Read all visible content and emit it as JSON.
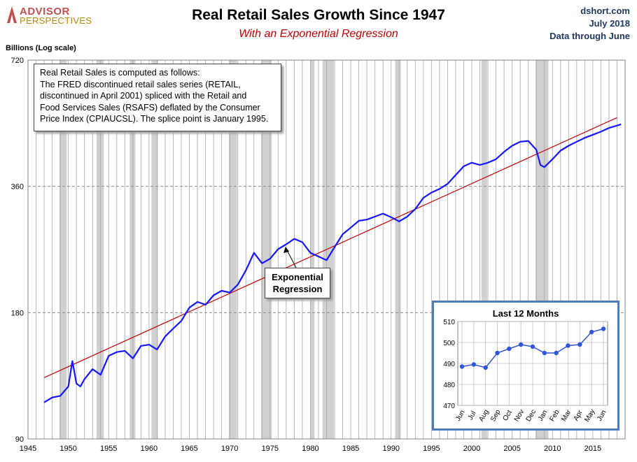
{
  "brand": {
    "line1": "ADVISOR",
    "line2": "PERSPECTIVES"
  },
  "header": {
    "title": "Real Retail Sales Growth Since 1947",
    "subtitle": "With an Exponential Regression",
    "source_lines": [
      "dshort.com",
      "July 2018",
      "Data through June"
    ]
  },
  "y_axis_label": "Billions (Log scale)",
  "note_lines": [
    "Real Retail Sales is computed as follows:",
    "The FRED discontinued retail sales series (RETAIL,",
    "discontinued in April 2001) spliced with the Retail and",
    "Food Services Sales (RSAFS) deflated by the Consumer",
    "Price Index (CPIAUCSL). The splice point is January 1995."
  ],
  "callout_lines": [
    "Exponential",
    "Regression"
  ],
  "colors": {
    "series": "#1515ff",
    "regression": "#c00000",
    "recession": "#d0d0d0",
    "inset_border": "#4a7ebb",
    "inset_series": "#2f56d8"
  },
  "chart_data": [
    {
      "type": "line",
      "title": "Real Retail Sales Growth Since 1947",
      "ylabel": "Billions (Log scale)",
      "yscale": "log",
      "ylim": [
        90,
        720
      ],
      "yticks": [
        90,
        180,
        360,
        720
      ],
      "xlim": [
        1945,
        2019
      ],
      "xticks": [
        1945,
        1950,
        1955,
        1960,
        1965,
        1970,
        1975,
        1980,
        1985,
        1990,
        1995,
        2000,
        2005,
        2010,
        2015
      ],
      "grid": true,
      "recessions": [
        [
          1948.9,
          1949.8
        ],
        [
          1953.5,
          1954.4
        ],
        [
          1957.6,
          1958.3
        ],
        [
          1960.3,
          1961.1
        ],
        [
          1969.9,
          1970.9
        ],
        [
          1973.9,
          1975.2
        ],
        [
          1980.0,
          1980.5
        ],
        [
          1981.5,
          1982.9
        ],
        [
          1990.5,
          1991.2
        ],
        [
          2001.2,
          2001.9
        ],
        [
          2007.9,
          2009.5
        ]
      ],
      "series": [
        {
          "name": "",
          "x": [
            1947,
            1948,
            1949,
            1950,
            1950.5,
            1951,
            1951.5,
            1952,
            1953,
            1954,
            1955,
            1956,
            1957,
            1958,
            1959,
            1960,
            1961,
            1962,
            1963,
            1964,
            1965,
            1966,
            1967,
            1968,
            1969,
            1970,
            1971,
            1972,
            1973,
            1974,
            1975,
            1976,
            1977,
            1978,
            1979,
            1980,
            1981,
            1982,
            1983,
            1984,
            1985,
            1986,
            1987,
            1988,
            1989,
            1990,
            1991,
            1992,
            1993,
            1994,
            1995,
            1996,
            1997,
            1998,
            1999,
            2000,
            2001,
            2002,
            2003,
            2004,
            2005,
            2006,
            2007,
            2008,
            2008.5,
            2009,
            2010,
            2011,
            2012,
            2013,
            2014,
            2015,
            2016,
            2017,
            2018.5
          ],
          "y": [
            110,
            113,
            114,
            120,
            138,
            122,
            120,
            125,
            132,
            128,
            142,
            145,
            146,
            140,
            150,
            151,
            147,
            158,
            165,
            172,
            185,
            191,
            188,
            198,
            203,
            201,
            210,
            227,
            250,
            236,
            242,
            255,
            262,
            270,
            265,
            250,
            245,
            240,
            258,
            277,
            287,
            298,
            300,
            305,
            310,
            304,
            297,
            305,
            318,
            338,
            348,
            355,
            365,
            383,
            402,
            410,
            405,
            410,
            418,
            435,
            450,
            460,
            462,
            440,
            405,
            400,
            418,
            438,
            450,
            460,
            470,
            478,
            486,
            496,
            506
          ]
        },
        {
          "name": "Exponential Regression",
          "x": [
            1947,
            2018
          ],
          "y": [
            126,
            525
          ]
        }
      ]
    },
    {
      "type": "line",
      "title": "Last 12 Months",
      "categories": [
        "Jun",
        "Jul",
        "Aug",
        "Sep",
        "Oct",
        "Nov",
        "Dec",
        "Jan",
        "Feb",
        "Mar",
        "Apr",
        "May",
        "Jun"
      ],
      "ylim": [
        470,
        510
      ],
      "yticks": [
        470,
        480,
        490,
        500,
        510
      ],
      "values": [
        488.5,
        489.5,
        488,
        495,
        497,
        499,
        498,
        495,
        495,
        498.5,
        499,
        505,
        506.5
      ]
    }
  ]
}
